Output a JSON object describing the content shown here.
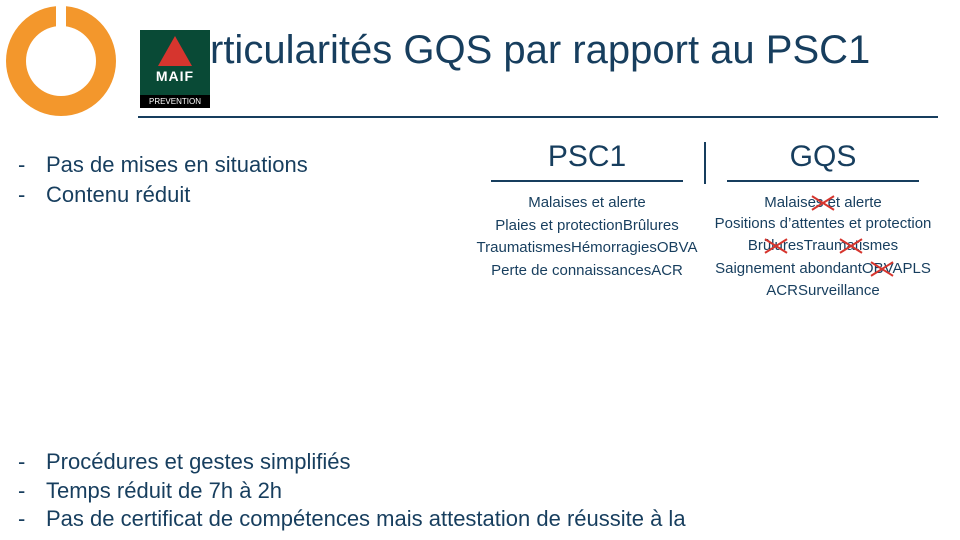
{
  "colors": {
    "primary_text": "#173e5e",
    "accent_orange": "#f3972c",
    "maif_green": "#094a36",
    "maif_red": "#d6352e",
    "background": "#ffffff"
  },
  "logo": {
    "maif_brand": "MAIF",
    "maif_sub": "PREVENTION"
  },
  "title": "rticularités GQS par rapport au PSC1",
  "bullets_top": [
    "Pas de mises en situations",
    "Contenu réduit"
  ],
  "columns": {
    "psc1": {
      "header": "PSC1",
      "items": [
        {
          "text": "Malaises et alerte",
          "struck": false
        },
        {
          "text": "Plaies et protection",
          "struck": false
        },
        {
          "text": "Brûlures",
          "struck": false
        },
        {
          "text": "Traumatismes",
          "struck": false
        },
        {
          "text": "Hémorragies",
          "struck": false
        },
        {
          "text": "OBVA",
          "struck": false
        },
        {
          "text": "Perte de connaissances",
          "struck": false
        },
        {
          "text": "ACR",
          "struck": false
        }
      ]
    },
    "gqs": {
      "header": "GQS",
      "items": [
        {
          "text": "Malaises et alerte",
          "struck": true
        },
        {
          "text": "Positions d’attentes et protection",
          "struck": false
        },
        {
          "text": "Brûlures",
          "struck": true
        },
        {
          "text": "Traumatismes",
          "struck": true
        },
        {
          "text": "Saignement abondant",
          "struck": false
        },
        {
          "text": "OBVA",
          "struck": true
        },
        {
          "text": "PLS",
          "struck": false
        },
        {
          "text": "ACR",
          "struck": false
        },
        {
          "text": "Surveillance",
          "struck": false
        }
      ]
    }
  },
  "bullets_bottom": [
    "Procédures et gestes simplifiés",
    "Temps réduit de 7h à 2h",
    "Pas de certificat de compétences mais attestation de réussite à la"
  ]
}
